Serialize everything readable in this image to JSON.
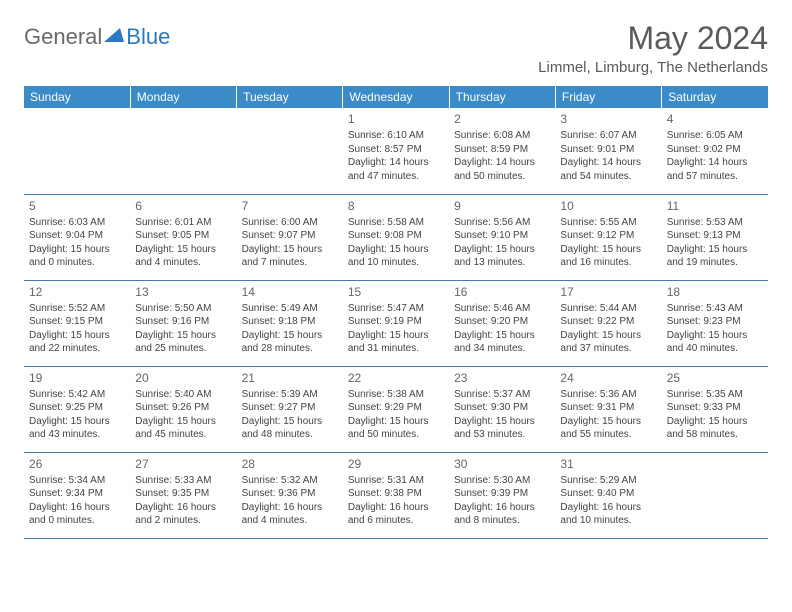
{
  "brand": {
    "word1": "General",
    "word2": "Blue"
  },
  "title": "May 2024",
  "location": "Limmel, Limburg, The Netherlands",
  "colors": {
    "header_bg": "#3b8bc9",
    "header_text": "#ffffff",
    "border": "#4a7aa8",
    "brand_gray": "#6b6b6b",
    "brand_blue": "#2a7abf"
  },
  "dayNames": [
    "Sunday",
    "Monday",
    "Tuesday",
    "Wednesday",
    "Thursday",
    "Friday",
    "Saturday"
  ],
  "weeks": [
    [
      null,
      null,
      null,
      {
        "n": "1",
        "sr": "6:10 AM",
        "ss": "8:57 PM",
        "dl": "14 hours and 47 minutes."
      },
      {
        "n": "2",
        "sr": "6:08 AM",
        "ss": "8:59 PM",
        "dl": "14 hours and 50 minutes."
      },
      {
        "n": "3",
        "sr": "6:07 AM",
        "ss": "9:01 PM",
        "dl": "14 hours and 54 minutes."
      },
      {
        "n": "4",
        "sr": "6:05 AM",
        "ss": "9:02 PM",
        "dl": "14 hours and 57 minutes."
      }
    ],
    [
      {
        "n": "5",
        "sr": "6:03 AM",
        "ss": "9:04 PM",
        "dl": "15 hours and 0 minutes."
      },
      {
        "n": "6",
        "sr": "6:01 AM",
        "ss": "9:05 PM",
        "dl": "15 hours and 4 minutes."
      },
      {
        "n": "7",
        "sr": "6:00 AM",
        "ss": "9:07 PM",
        "dl": "15 hours and 7 minutes."
      },
      {
        "n": "8",
        "sr": "5:58 AM",
        "ss": "9:08 PM",
        "dl": "15 hours and 10 minutes."
      },
      {
        "n": "9",
        "sr": "5:56 AM",
        "ss": "9:10 PM",
        "dl": "15 hours and 13 minutes."
      },
      {
        "n": "10",
        "sr": "5:55 AM",
        "ss": "9:12 PM",
        "dl": "15 hours and 16 minutes."
      },
      {
        "n": "11",
        "sr": "5:53 AM",
        "ss": "9:13 PM",
        "dl": "15 hours and 19 minutes."
      }
    ],
    [
      {
        "n": "12",
        "sr": "5:52 AM",
        "ss": "9:15 PM",
        "dl": "15 hours and 22 minutes."
      },
      {
        "n": "13",
        "sr": "5:50 AM",
        "ss": "9:16 PM",
        "dl": "15 hours and 25 minutes."
      },
      {
        "n": "14",
        "sr": "5:49 AM",
        "ss": "9:18 PM",
        "dl": "15 hours and 28 minutes."
      },
      {
        "n": "15",
        "sr": "5:47 AM",
        "ss": "9:19 PM",
        "dl": "15 hours and 31 minutes."
      },
      {
        "n": "16",
        "sr": "5:46 AM",
        "ss": "9:20 PM",
        "dl": "15 hours and 34 minutes."
      },
      {
        "n": "17",
        "sr": "5:44 AM",
        "ss": "9:22 PM",
        "dl": "15 hours and 37 minutes."
      },
      {
        "n": "18",
        "sr": "5:43 AM",
        "ss": "9:23 PM",
        "dl": "15 hours and 40 minutes."
      }
    ],
    [
      {
        "n": "19",
        "sr": "5:42 AM",
        "ss": "9:25 PM",
        "dl": "15 hours and 43 minutes."
      },
      {
        "n": "20",
        "sr": "5:40 AM",
        "ss": "9:26 PM",
        "dl": "15 hours and 45 minutes."
      },
      {
        "n": "21",
        "sr": "5:39 AM",
        "ss": "9:27 PM",
        "dl": "15 hours and 48 minutes."
      },
      {
        "n": "22",
        "sr": "5:38 AM",
        "ss": "9:29 PM",
        "dl": "15 hours and 50 minutes."
      },
      {
        "n": "23",
        "sr": "5:37 AM",
        "ss": "9:30 PM",
        "dl": "15 hours and 53 minutes."
      },
      {
        "n": "24",
        "sr": "5:36 AM",
        "ss": "9:31 PM",
        "dl": "15 hours and 55 minutes."
      },
      {
        "n": "25",
        "sr": "5:35 AM",
        "ss": "9:33 PM",
        "dl": "15 hours and 58 minutes."
      }
    ],
    [
      {
        "n": "26",
        "sr": "5:34 AM",
        "ss": "9:34 PM",
        "dl": "16 hours and 0 minutes."
      },
      {
        "n": "27",
        "sr": "5:33 AM",
        "ss": "9:35 PM",
        "dl": "16 hours and 2 minutes."
      },
      {
        "n": "28",
        "sr": "5:32 AM",
        "ss": "9:36 PM",
        "dl": "16 hours and 4 minutes."
      },
      {
        "n": "29",
        "sr": "5:31 AM",
        "ss": "9:38 PM",
        "dl": "16 hours and 6 minutes."
      },
      {
        "n": "30",
        "sr": "5:30 AM",
        "ss": "9:39 PM",
        "dl": "16 hours and 8 minutes."
      },
      {
        "n": "31",
        "sr": "5:29 AM",
        "ss": "9:40 PM",
        "dl": "16 hours and 10 minutes."
      },
      null
    ]
  ],
  "labels": {
    "sunrise": "Sunrise:",
    "sunset": "Sunset:",
    "daylight": "Daylight:"
  }
}
